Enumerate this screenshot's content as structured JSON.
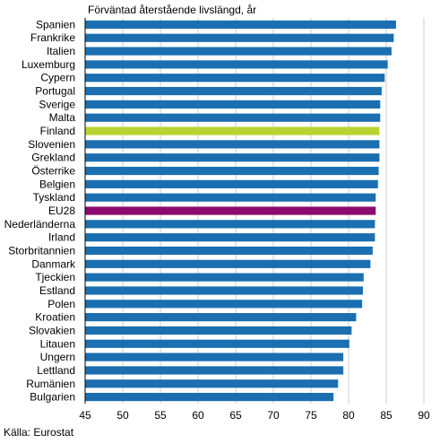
{
  "chart_data": {
    "type": "bar",
    "orientation": "horizontal",
    "title": "Förväntad återstående livslängd, år",
    "source": "Källa: Eurostat",
    "categories": [
      "Spanien",
      "Frankrike",
      "Italien",
      "Luxemburg",
      "Cypern",
      "Portugal",
      "Sverige",
      "Malta",
      "Finland",
      "Slovenien",
      "Grekland",
      "Österrike",
      "Belgien",
      "Tyskland",
      "EU28",
      "Nederländerna",
      "Irland",
      "Storbritannien",
      "Danmark",
      "Tjeckien",
      "Estland",
      "Polen",
      "Kroatien",
      "Slovakien",
      "Litauen",
      "Ungern",
      "Lettland",
      "Rumänien",
      "Bulgarien"
    ],
    "values": [
      86.3,
      86.0,
      85.7,
      85.2,
      84.8,
      84.4,
      84.2,
      84.2,
      84.1,
      84.1,
      84.1,
      84.0,
      83.9,
      83.6,
      83.6,
      83.5,
      83.5,
      83.2,
      82.9,
      82.0,
      81.9,
      81.8,
      81.0,
      80.4,
      80.1,
      79.3,
      79.3,
      78.6,
      78.0
    ],
    "xlim": [
      45,
      90
    ],
    "xticks": [
      45,
      50,
      55,
      60,
      65,
      70,
      75,
      80,
      85,
      90
    ],
    "grid": "vertical",
    "colors": {
      "default": "#1b6fb0",
      "Finland": "#b9d432",
      "EU28": "#8c0a6e",
      "grid": "#cccccc",
      "axis": "#000000"
    }
  }
}
